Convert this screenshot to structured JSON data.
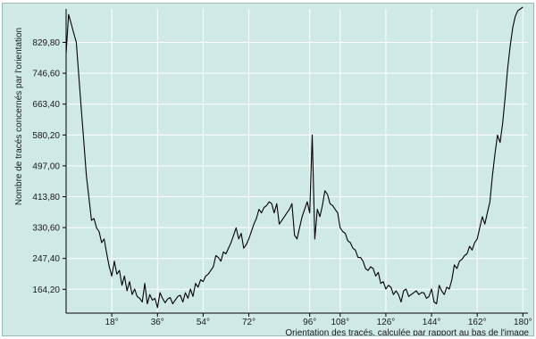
{
  "chart_data": {
    "type": "line",
    "title": "",
    "xlabel": "Orientation des tracés, calculée par rapport au bas de l'image",
    "ylabel": "Nombre de tracés concernés par l'orientation",
    "xlim": [
      0,
      182
    ],
    "ylim": [
      100,
      920
    ],
    "grid": true,
    "x_ticks": [
      18,
      36,
      54,
      72,
      96,
      108,
      126,
      144,
      162,
      180
    ],
    "x_tick_labels": [
      "18°",
      "36°",
      "54°",
      "72°",
      "96°",
      "108°",
      "126°",
      "144°",
      "162°",
      "180°"
    ],
    "y_ticks": [
      164.2,
      247.4,
      330.6,
      413.8,
      497.0,
      580.2,
      663.4,
      746.6,
      829.8
    ],
    "y_tick_labels": [
      "164,20",
      "247,40",
      "330,60",
      "413,80",
      "497,00",
      "580,20",
      "663,40",
      "746,60",
      "829,80"
    ],
    "series": [
      {
        "color": "#000000",
        "x": [
          0,
          1,
          2,
          3,
          4,
          5,
          6,
          7,
          8,
          9,
          10,
          11,
          12,
          13,
          14,
          15,
          16,
          17,
          18,
          19,
          20,
          21,
          22,
          23,
          24,
          25,
          26,
          27,
          28,
          29,
          30,
          31,
          32,
          33,
          34,
          35,
          36,
          37,
          38,
          39,
          40,
          41,
          42,
          43,
          44,
          45,
          46,
          47,
          48,
          49,
          50,
          51,
          52,
          53,
          54,
          55,
          56,
          57,
          58,
          59,
          60,
          61,
          62,
          63,
          64,
          65,
          66,
          67,
          68,
          69,
          70,
          71,
          72,
          73,
          74,
          75,
          76,
          77,
          78,
          79,
          80,
          81,
          82,
          83,
          84,
          85,
          86,
          87,
          88,
          89,
          90,
          91,
          92,
          93,
          94,
          95,
          96,
          97,
          98,
          99,
          100,
          101,
          102,
          103,
          104,
          105,
          106,
          107,
          108,
          109,
          110,
          111,
          112,
          113,
          114,
          115,
          116,
          117,
          118,
          119,
          120,
          121,
          122,
          123,
          124,
          125,
          126,
          127,
          128,
          129,
          130,
          131,
          132,
          133,
          134,
          135,
          136,
          137,
          138,
          139,
          140,
          141,
          142,
          143,
          144,
          145,
          146,
          147,
          148,
          149,
          150,
          151,
          152,
          153,
          154,
          155,
          156,
          157,
          158,
          159,
          160,
          161,
          162,
          163,
          164,
          165,
          166,
          167,
          168,
          169,
          170,
          171,
          172,
          173,
          174,
          175,
          176,
          177,
          178,
          179,
          180
        ],
        "y": [
          800,
          905,
          880,
          855,
          830,
          740,
          650,
          560,
          470,
          410,
          350,
          355,
          330,
          320,
          290,
          300,
          260,
          225,
          200,
          240,
          205,
          215,
          175,
          200,
          160,
          185,
          150,
          165,
          145,
          140,
          130,
          180,
          125,
          150,
          135,
          140,
          115,
          155,
          140,
          128,
          138,
          142,
          125,
          135,
          145,
          148,
          130,
          155,
          140,
          165,
          145,
          180,
          170,
          190,
          185,
          200,
          205,
          215,
          225,
          255,
          250,
          240,
          265,
          260,
          275,
          290,
          310,
          330,
          300,
          315,
          275,
          285,
          300,
          320,
          340,
          355,
          380,
          370,
          385,
          390,
          400,
          395,
          370,
          395,
          340,
          350,
          360,
          370,
          380,
          395,
          310,
          300,
          330,
          360,
          380,
          400,
          370,
          580,
          300,
          380,
          360,
          390,
          430,
          420,
          395,
          390,
          380,
          370,
          330,
          320,
          315,
          295,
          290,
          275,
          270,
          250,
          250,
          240,
          220,
          215,
          225,
          220,
          200,
          210,
          180,
          185,
          165,
          175,
          170,
          150,
          160,
          150,
          130,
          160,
          165,
          145,
          150,
          155,
          160,
          150,
          155,
          155,
          140,
          145,
          165,
          130,
          125,
          175,
          160,
          150,
          170,
          165,
          190,
          230,
          220,
          240,
          245,
          255,
          260,
          280,
          270,
          290,
          300,
          330,
          360,
          340,
          370,
          400,
          470,
          530,
          580,
          560,
          610,
          680,
          760,
          820,
          870,
          900,
          915,
          920,
          925
        ]
      }
    ]
  }
}
